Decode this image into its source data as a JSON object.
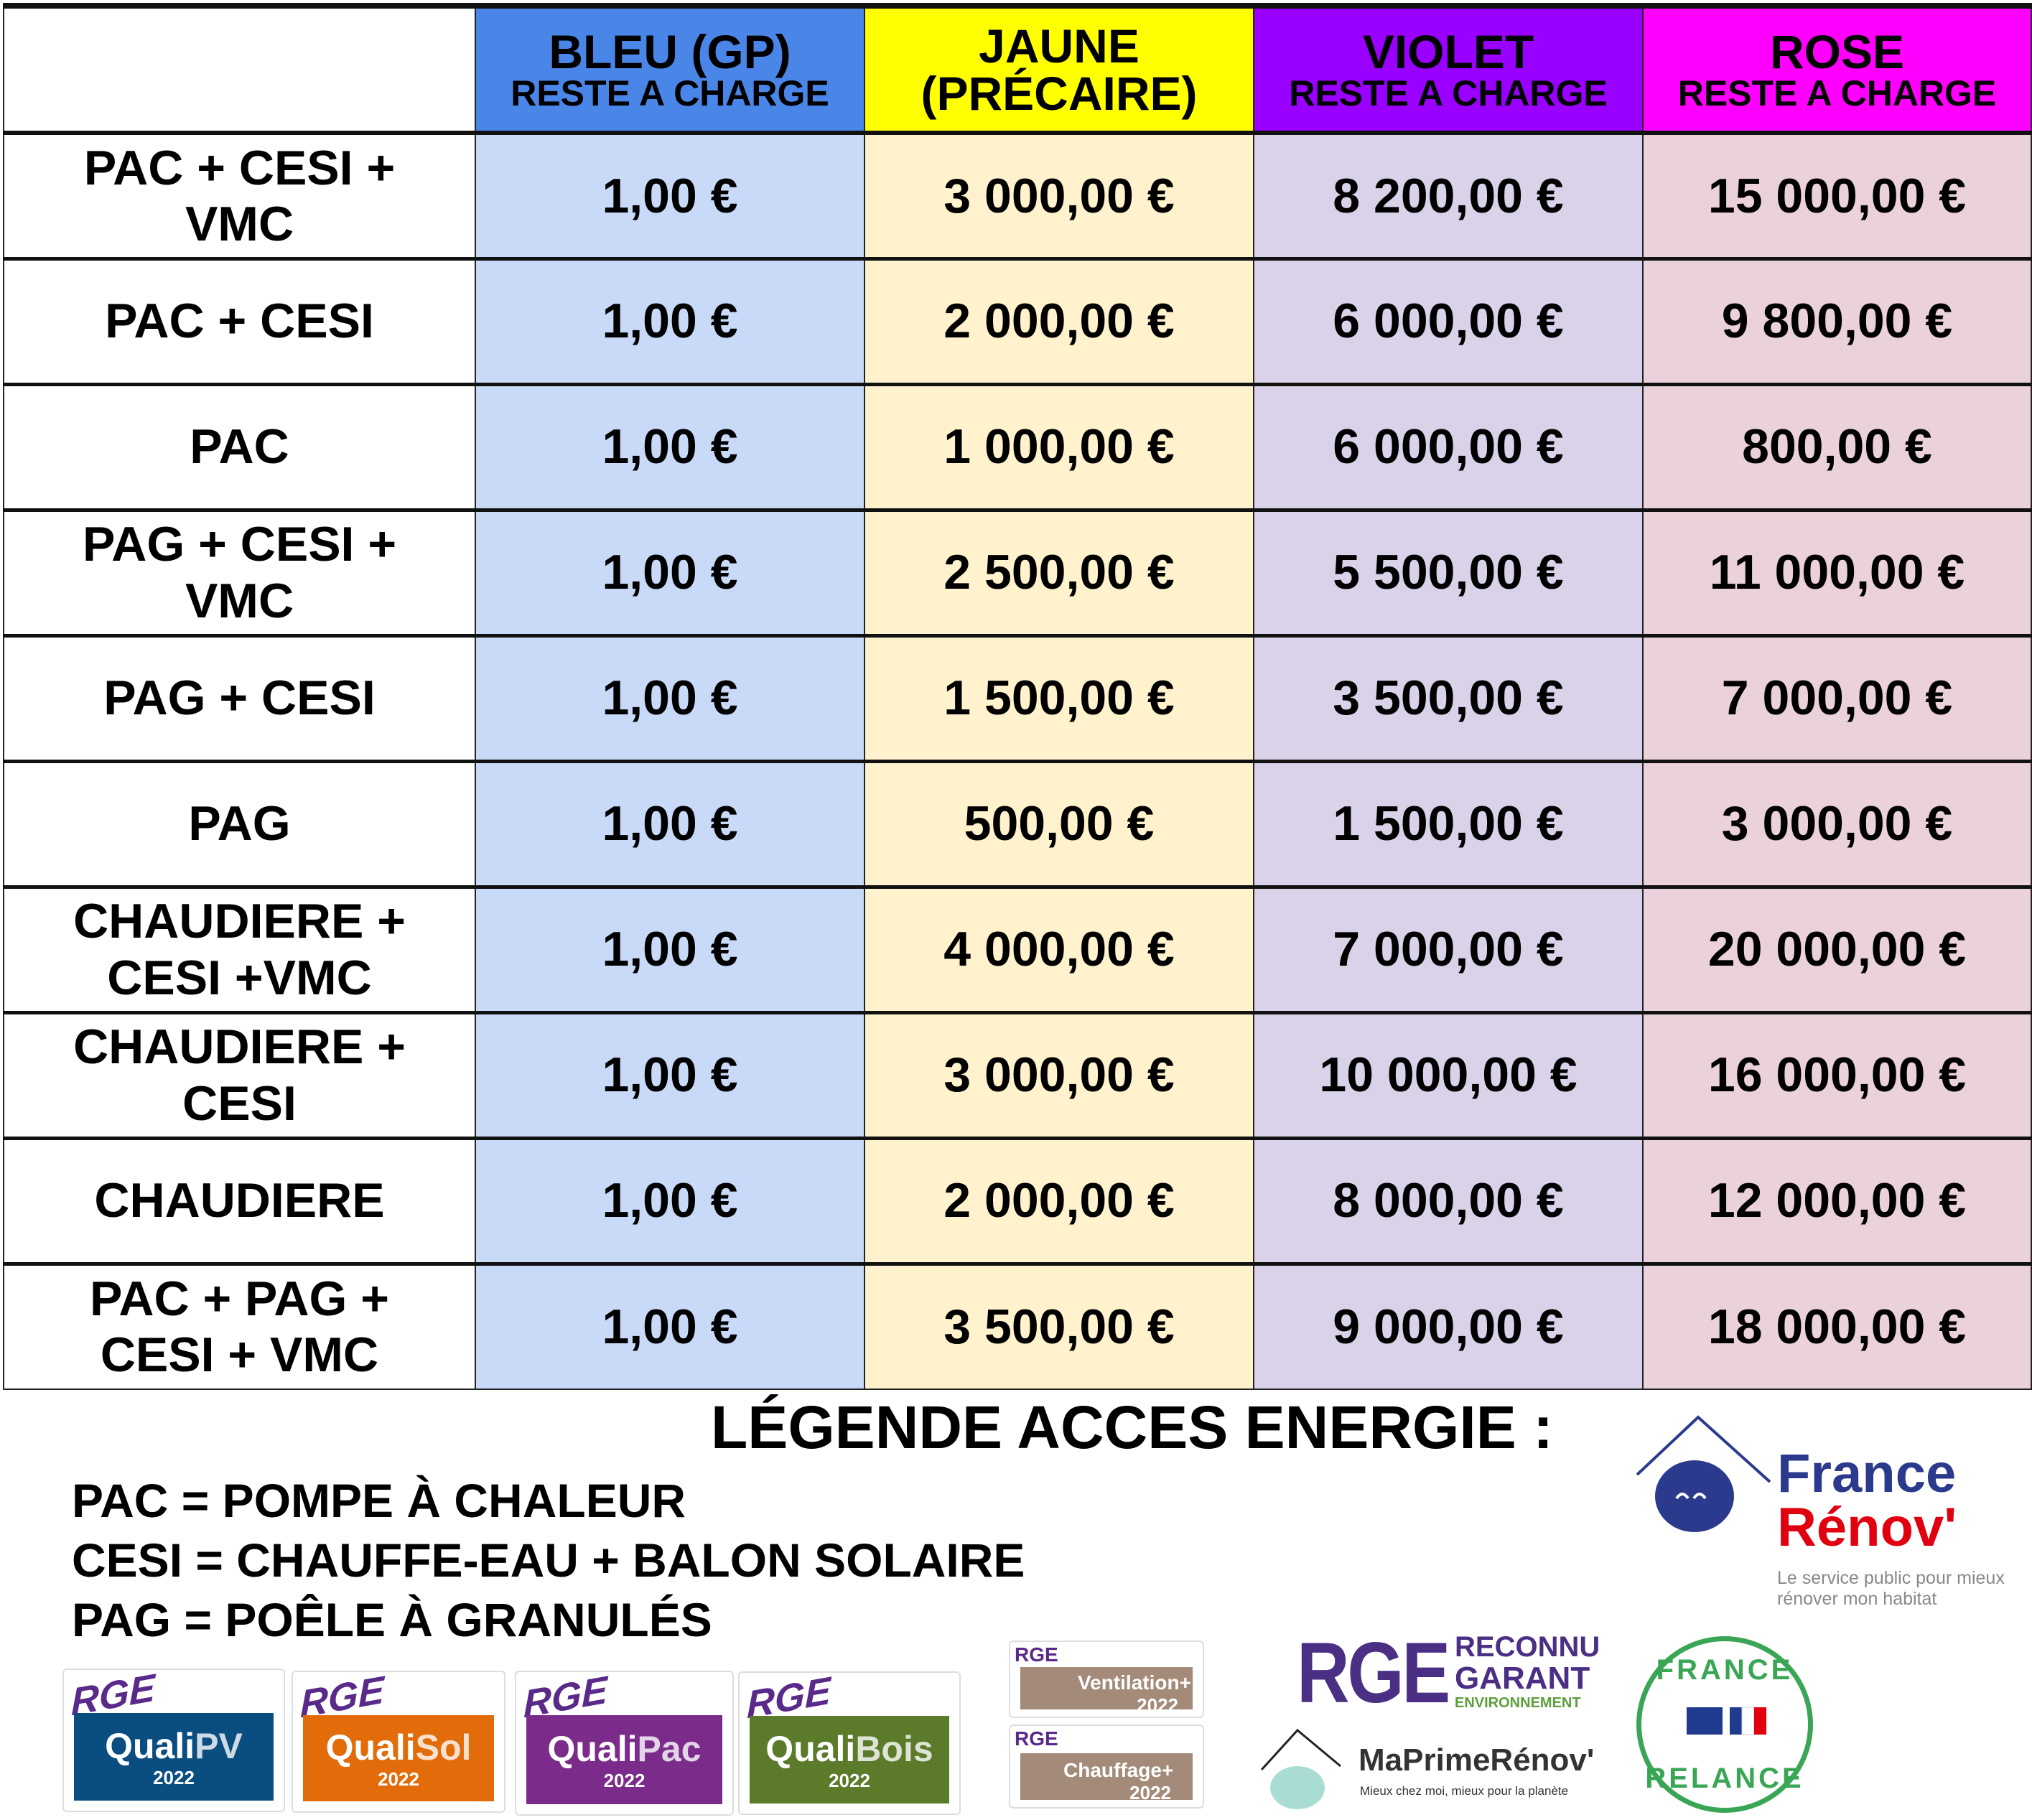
{
  "table": {
    "headers": [
      {
        "main": "",
        "sub": "",
        "color": "#ffffff"
      },
      {
        "main": "BLEU (GP)",
        "sub": "RESTE A CHARGE",
        "color": "#4a86e8"
      },
      {
        "main": "JAUNE",
        "sub": "(PRÉCAIRE)",
        "color": "#ffff00"
      },
      {
        "main": "VIOLET",
        "sub": "RESTE A CHARGE",
        "color": "#9900ff"
      },
      {
        "main": "ROSE",
        "sub": "RESTE A CHARGE",
        "color": "#ff00ff"
      }
    ],
    "body_colors": [
      "#ffffff",
      "#c9daf8",
      "#fff2cc",
      "#d9d2e9",
      "#ead1dc"
    ],
    "rows": [
      [
        "PAC + CESI + VMC",
        "1,00 €",
        "3 000,00 €",
        "8 200,00 €",
        "15 000,00 €"
      ],
      [
        "PAC + CESI",
        "1,00 €",
        "2 000,00 €",
        "6 000,00 €",
        "9 800,00 €"
      ],
      [
        "PAC",
        "1,00 €",
        "1 000,00 €",
        "6 000,00 €",
        "800,00 €"
      ],
      [
        "PAG + CESI + VMC",
        "1,00 €",
        "2 500,00 €",
        "5 500,00 €",
        "11 000,00 €"
      ],
      [
        "PAG + CESI",
        "1,00 €",
        "1 500,00 €",
        "3 500,00 €",
        "7 000,00 €"
      ],
      [
        "PAG",
        "1,00 €",
        "500,00 €",
        "1 500,00 €",
        "3 000,00 €"
      ],
      [
        "CHAUDIERE + CESI +VMC",
        "1,00 €",
        "4 000,00 €",
        "7 000,00 €",
        "20 000,00 €"
      ],
      [
        "CHAUDIERE + CESI",
        "1,00 €",
        "3 000,00 €",
        "10 000,00 €",
        "16 000,00 €"
      ],
      [
        "CHAUDIERE",
        "1,00 €",
        "2 000,00 €",
        "8 000,00 €",
        "12 000,00 €"
      ],
      [
        "PAC + PAG + CESI + VMC",
        "1,00 €",
        "3 500,00 €",
        "9 000,00 €",
        "18 000,00 €"
      ]
    ]
  },
  "legend": {
    "title": "LÉGENDE ACCES ENERGIE :",
    "lines": [
      "PAC = POMPE À CHALEUR",
      "CESI = CHAUFFE-EAU + BALON SOLAIRE",
      "PAG = POÊLE À GRANULÉS"
    ]
  },
  "logos": {
    "france_renov": {
      "line1": "France",
      "line2": "Rénov'",
      "tagline": "Le service public pour mieux rénover mon habitat"
    },
    "quali": [
      {
        "rge": "RGE",
        "name": "Quali",
        "suffix": "PV",
        "year": "2022",
        "color": "#0a4d80"
      },
      {
        "rge": "RGE",
        "name": "Quali",
        "suffix": "Sol",
        "year": "2022",
        "color": "#e36c0a"
      },
      {
        "rge": "RGE",
        "name": "Quali",
        "suffix": "Pac",
        "year": "2022",
        "color": "#7b2c8b"
      },
      {
        "rge": "RGE",
        "name": "Quali",
        "suffix": "Bois",
        "year": "2022",
        "color": "#5b7a2a"
      }
    ],
    "small": [
      {
        "rge": "RGE",
        "label": "Ventilation+",
        "year": "2022"
      },
      {
        "rge": "RGE",
        "label": "Chauffage+",
        "year": "2022"
      }
    ],
    "rge_garant": {
      "big": "RGE",
      "l1": "RECONNU",
      "l2": "GARANT",
      "l3": "ENVIRONNEMENT"
    },
    "maprimerenov": {
      "name": "MaPrimeRénov'",
      "tagline": "Mieux chez moi, mieux pour la planète"
    },
    "france_relance": {
      "top": "FRANCE",
      "bottom": "RELANCE"
    }
  }
}
